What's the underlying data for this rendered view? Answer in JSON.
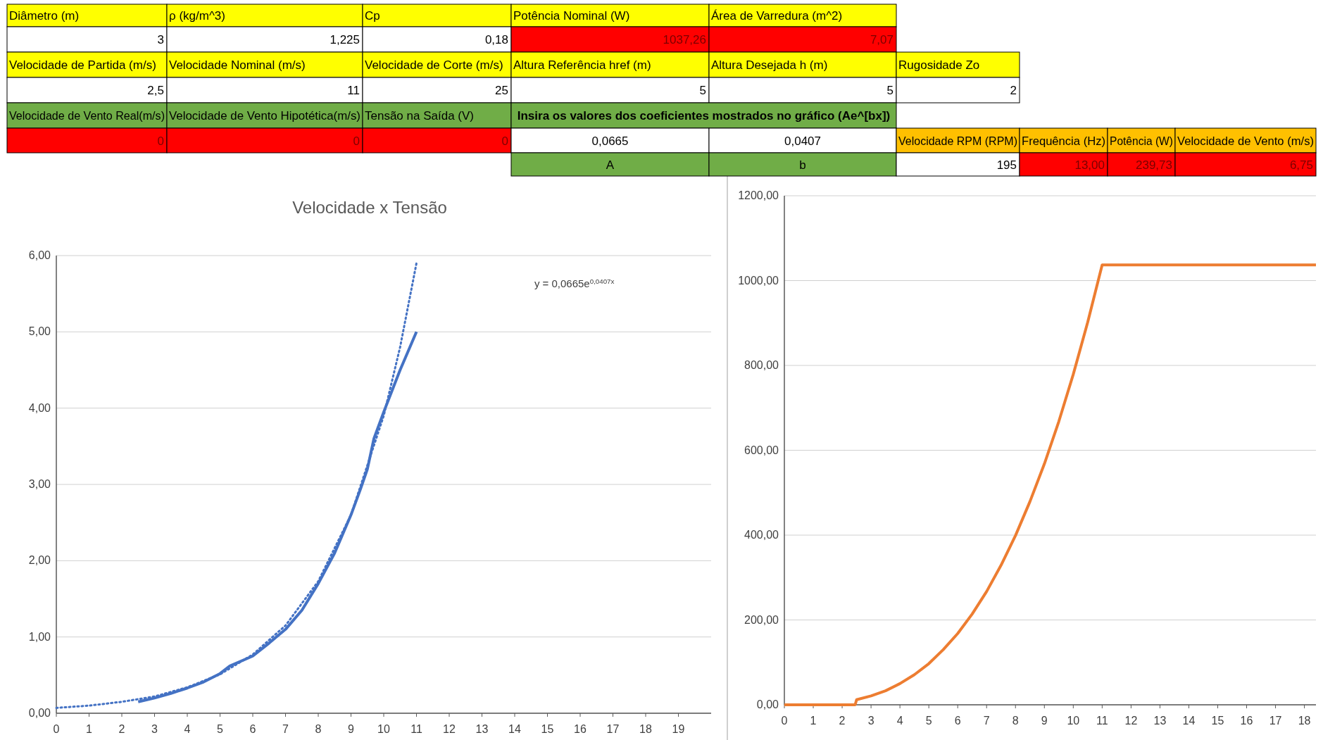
{
  "chart_data": [
    {
      "type": "other",
      "annotations": [
        "Diâmetro (m)",
        "ρ (kg/m^3)",
        "Cp",
        "Potência Nominal (W)",
        "Área de Varredura (m^2)",
        "3",
        "1,225",
        "0,18",
        "1037,26",
        "7,07",
        "Velocidade de Partida (m/s)",
        "Velocidade Nominal (m/s)",
        "Velocidade de Corte (m/s)",
        "Altura Referência href (m)",
        "Altura Desejada h (m)",
        "Rugosidade Zo",
        "2,5",
        "11",
        "25",
        "5",
        "5",
        "2",
        "Velocidade de Vento Real(m/s)",
        "Velocidade de Vento Hipotética(m/s)",
        "Tensão na Saída (V)",
        "Insira os valores dos coeficientes mostrados no gráfico (Ae^[bx])",
        "0",
        "0",
        "0",
        "0,0665",
        "0,0407",
        "Velocidade RPM (RPM)",
        "Frequência (Hz)",
        "Potência (W)",
        "Velocidade de Vento (m/s)",
        "A",
        "b",
        "195",
        "13,00",
        "239,73",
        "6,75"
      ],
      "colors": [
        "#ffff00",
        "#ffff00",
        "#ffff00",
        "#ffff00",
        "#ffff00",
        "#ffffff",
        "#ffffff",
        "#ffffff",
        "#ff0000",
        "#ff0000",
        "#ffff00",
        "#ffff00",
        "#ffff00",
        "#ffff00",
        "#ffff00",
        "#ffff00",
        "#ffffff",
        "#ffffff",
        "#ffffff",
        "#ffffff",
        "#ffffff",
        "#ffffff",
        "#70ad47",
        "#70ad47",
        "#70ad47",
        "#70ad47",
        "#ff0000",
        "#ff0000",
        "#ff0000",
        "#ffffff",
        "#ffffff",
        "#ffc000",
        "#ffc000",
        "#ffc000",
        "#ffc000",
        "#70ad47",
        "#70ad47",
        "#ffffff",
        "#ff0000",
        "#ff0000",
        "#ff0000"
      ]
    },
    {
      "type": "line",
      "title": "Velocidade x Tensão",
      "annotations": [
        "y = 0,0665e$^{0,0407x}$"
      ],
      "xlim": [
        0,
        20
      ],
      "xticks": [
        0,
        1,
        2,
        3,
        4,
        5,
        6,
        7,
        8,
        9,
        10,
        11,
        12,
        13,
        14,
        15,
        16,
        17,
        18,
        19
      ],
      "ylim": [
        0,
        6
      ],
      "yticks": [
        {
          "value": 0,
          "label": "0,00"
        },
        {
          "value": 1,
          "label": "1,00"
        },
        {
          "value": 2,
          "label": "2,00"
        },
        {
          "value": 3,
          "label": "3,00"
        },
        {
          "value": 4,
          "label": "4,00"
        },
        {
          "value": 5,
          "label": "5,00"
        },
        {
          "value": 6,
          "label": "6,00"
        }
      ],
      "grid": "y",
      "series": [
        {
          "color": "#4472c4",
          "line_style": "solid",
          "x": [
            2.5,
            3,
            3.5,
            4,
            4.5,
            5,
            5.3,
            6,
            6.5,
            7,
            7.5,
            8,
            8.5,
            9,
            9.3,
            9.5,
            9.7,
            10,
            10.5,
            11
          ],
          "values": [
            0.15,
            0.2,
            0.26,
            0.33,
            0.41,
            0.52,
            0.62,
            0.75,
            0.92,
            1.1,
            1.35,
            1.7,
            2.1,
            2.6,
            2.95,
            3.2,
            3.6,
            3.95,
            4.5,
            5.0
          ]
        },
        {
          "color": "#4472c4",
          "line_style": "dotted",
          "x": [
            0,
            1,
            2,
            3,
            4,
            5,
            6,
            7,
            8,
            9,
            10,
            10.5,
            11
          ],
          "values": [
            0.07,
            0.1,
            0.15,
            0.22,
            0.34,
            0.51,
            0.77,
            1.15,
            1.73,
            2.6,
            3.9,
            4.8,
            5.9
          ]
        }
      ]
    },
    {
      "type": "line",
      "xlim": [
        0,
        18.4
      ],
      "xticks": [
        0,
        1,
        2,
        3,
        4,
        5,
        6,
        7,
        8,
        9,
        10,
        11,
        12,
        13,
        14,
        15,
        16,
        17,
        18
      ],
      "ylim": [
        0,
        1200
      ],
      "yticks": [
        {
          "value": 0,
          "label": "0,00"
        },
        {
          "value": 200,
          "label": "200,00"
        },
        {
          "value": 400,
          "label": "400,00"
        },
        {
          "value": 600,
          "label": "600,00"
        },
        {
          "value": 800,
          "label": "800,00"
        },
        {
          "value": 1000,
          "label": "1000,00"
        },
        {
          "value": 1200,
          "label": "1200,00"
        }
      ],
      "grid": "y",
      "series": [
        {
          "color": "#ed7d31",
          "line_style": "solid",
          "x": [
            0,
            2.45,
            2.5,
            3,
            3.5,
            4,
            4.5,
            5,
            5.5,
            6,
            6.5,
            7,
            7.5,
            8,
            8.5,
            9,
            9.5,
            10,
            10.5,
            11,
            18.4
          ],
          "values": [
            0,
            0,
            12,
            21,
            33,
            50,
            71,
            97,
            130,
            168,
            214,
            267,
            329,
            399,
            479,
            568,
            668,
            779,
            902,
            1037,
            1037
          ]
        }
      ]
    }
  ]
}
